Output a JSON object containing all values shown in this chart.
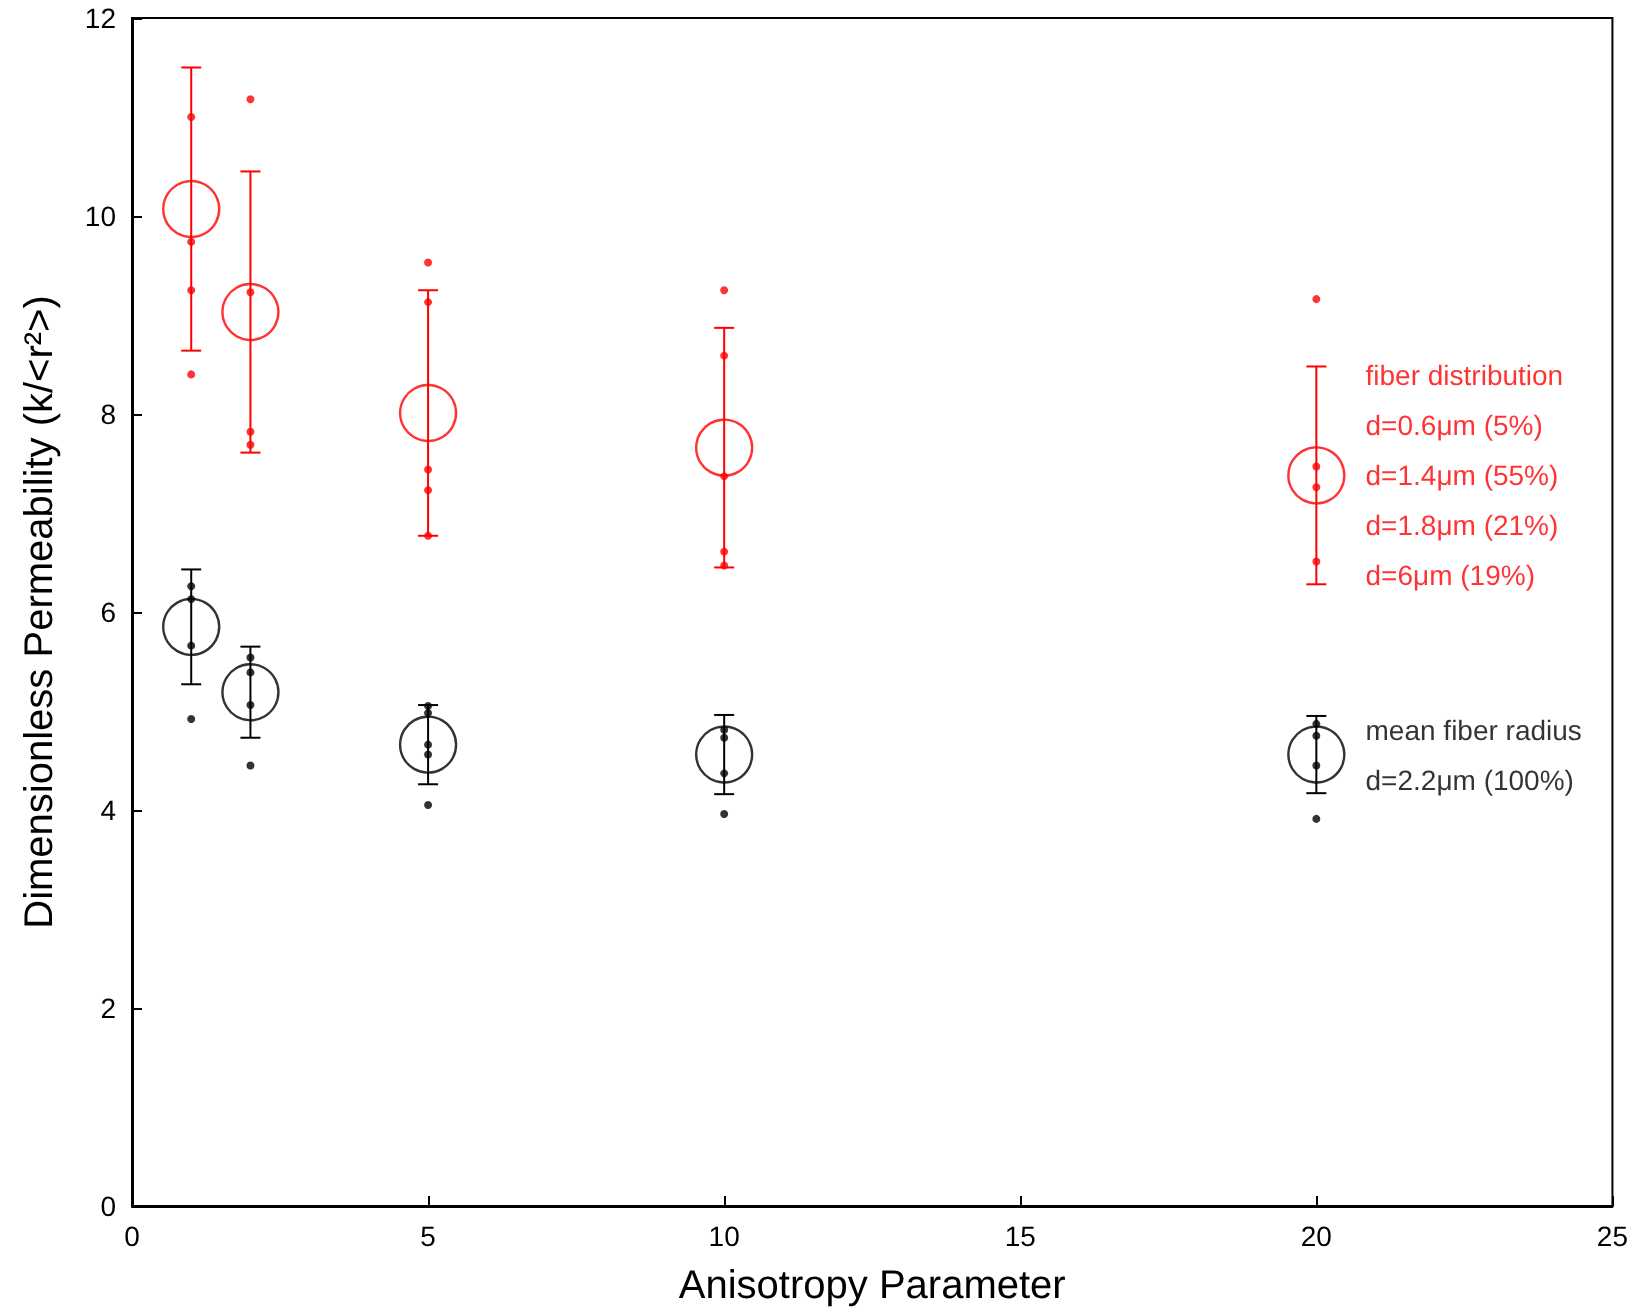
{
  "chart_data": {
    "type": "scatter",
    "xlabel": "Anisotropy Parameter",
    "ylabel": "Dimensionless Permeability (k/<r²>)",
    "xlim": [
      0,
      25
    ],
    "xticks": [
      0,
      5,
      10,
      15,
      20,
      25
    ],
    "ylim": [
      0,
      12
    ],
    "yticks": [
      0,
      2,
      4,
      6,
      8,
      10,
      12
    ],
    "grid": false,
    "legend": false,
    "series": [
      {
        "name": "fiber distribution\nd=0.6μm (5%)\nd=1.4μm (55%)\nd=1.8μm (21%)\nd=6μm (19%)",
        "color": "#ff0000",
        "marker": "circle",
        "x": [
          1,
          2,
          5,
          10,
          20
        ],
        "values": [
          10.07,
          9.03,
          8.01,
          7.66,
          7.38
        ],
        "errors": [
          1.43,
          1.42,
          1.24,
          1.21,
          1.1
        ]
      },
      {
        "color": "#ff0000",
        "marker": "circle",
        "x": [
          1,
          1,
          1,
          1,
          2,
          2,
          2,
          2,
          5,
          5,
          5,
          5,
          5,
          10,
          10,
          10,
          10,
          10,
          20,
          20,
          20,
          20
        ],
        "values": [
          11.0,
          9.74,
          9.25,
          8.4,
          11.18,
          9.23,
          7.82,
          7.69,
          9.53,
          9.13,
          7.44,
          7.23,
          6.77,
          9.25,
          8.59,
          7.37,
          6.61,
          6.47,
          9.16,
          7.47,
          7.26,
          6.51
        ]
      },
      {
        "name": "mean fiber radius\nd=2.2μm (100%)",
        "color": "#000000",
        "marker": "circle",
        "x": [
          1,
          2,
          5,
          10,
          20
        ],
        "values": [
          5.85,
          5.19,
          4.66,
          4.56,
          4.56
        ],
        "errors": [
          0.58,
          0.46,
          0.4,
          0.4,
          0.39
        ]
      },
      {
        "color": "#000000",
        "marker": "circle",
        "x": [
          1,
          1,
          1,
          1,
          2,
          2,
          2,
          2,
          5,
          5,
          5,
          5,
          5,
          10,
          10,
          10,
          10,
          20,
          20,
          20,
          20
        ],
        "values": [
          6.26,
          6.13,
          5.66,
          4.92,
          5.54,
          5.39,
          5.06,
          4.45,
          5.05,
          4.98,
          4.66,
          4.56,
          4.05,
          4.81,
          4.73,
          4.37,
          3.96,
          4.87,
          4.75,
          4.45,
          3.91
        ]
      }
    ]
  }
}
